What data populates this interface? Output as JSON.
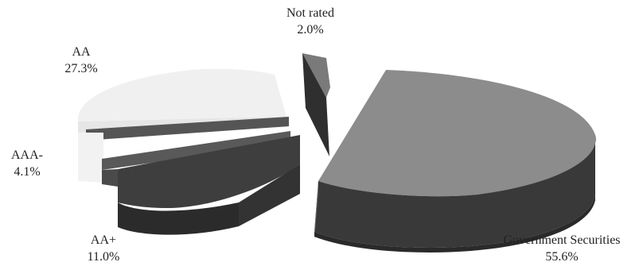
{
  "chart_data": {
    "type": "pie",
    "style": "3d-exploded",
    "slices": [
      {
        "label": "Government Securities",
        "value": 55.6,
        "display": "55.6%",
        "top_color": "#8c8c8c",
        "side_color": "#3a3a3a"
      },
      {
        "label": "AA+",
        "value": 11.0,
        "display": "11.0%",
        "top_color": "#3e3e3e",
        "side_color": "#2a2a2a"
      },
      {
        "label": "AAA-",
        "value": 4.1,
        "display": "4.1%",
        "top_color": "#595959",
        "side_color": "#444444"
      },
      {
        "label": "AA",
        "value": 27.3,
        "display": "27.3%",
        "top_color": "#f0f0f0",
        "side_color": "#e2e2e2"
      },
      {
        "label": "Not rated",
        "value": 2.0,
        "display": "2.0%",
        "top_color": "#7a7a7a",
        "side_color": "#333333"
      }
    ]
  }
}
